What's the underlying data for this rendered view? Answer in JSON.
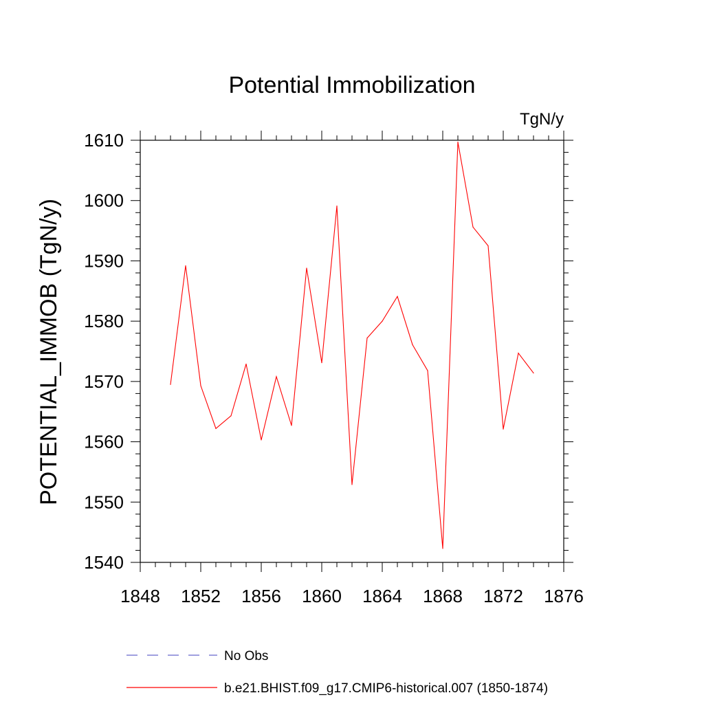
{
  "chart_data": {
    "type": "line",
    "title": "Potential Immobilization",
    "units_label": "TgN/y",
    "ylabel": "POTENTIAL_IMMOB  (TgN/y)",
    "xlabel": "",
    "xlim": [
      1848,
      1876
    ],
    "ylim": [
      1540,
      1610
    ],
    "x_ticks": [
      1848,
      1852,
      1856,
      1860,
      1864,
      1868,
      1872,
      1876
    ],
    "y_ticks": [
      1540,
      1550,
      1560,
      1570,
      1580,
      1590,
      1600,
      1610
    ],
    "x_minor_step": 1,
    "y_minor_step": 2,
    "grid": false,
    "legend_position": "bottom",
    "series": [
      {
        "name": "b.e21.BHIST.f09_g17.CMIP6-historical.007 (1850-1874)",
        "color": "#ff0000",
        "line_style": "solid",
        "x": [
          1850,
          1851,
          1852,
          1853,
          1854,
          1855,
          1856,
          1857,
          1858,
          1859,
          1860,
          1861,
          1862,
          1863,
          1864,
          1865,
          1866,
          1867,
          1868,
          1869,
          1870,
          1871,
          1872,
          1873,
          1874
        ],
        "values": [
          1569.5,
          1589.2,
          1569.3,
          1562.2,
          1564.3,
          1572.9,
          1560.3,
          1570.8,
          1562.7,
          1588.8,
          1573.1,
          1599.1,
          1552.9,
          1577.2,
          1580.0,
          1584.1,
          1576.1,
          1571.8,
          1542.3,
          1609.7,
          1595.6,
          1592.5,
          1562.1,
          1574.7,
          1571.4
        ]
      },
      {
        "name": "No Obs",
        "color": "#6666cc",
        "line_style": "dashed",
        "x": [],
        "values": []
      }
    ]
  }
}
